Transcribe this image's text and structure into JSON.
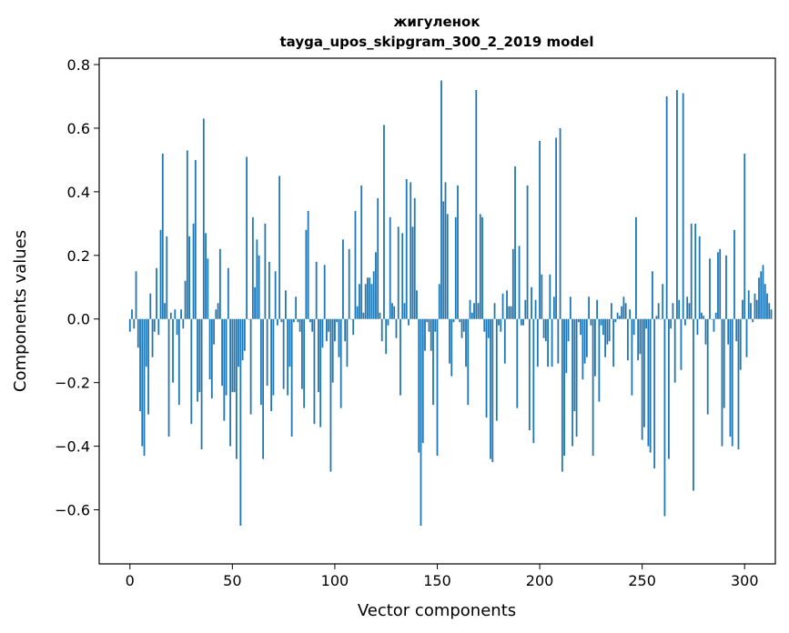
{
  "chart_data": {
    "type": "bar",
    "title": "жигуленок",
    "subtitle": "tayga_upos_skipgram_300_2_2019 model",
    "xlabel": "Vector components",
    "ylabel": "Components values",
    "xlim": [
      -15,
      315
    ],
    "ylim": [
      -0.77,
      0.82
    ],
    "xticks": [
      0,
      50,
      100,
      150,
      200,
      250,
      300
    ],
    "xtick_labels": [
      "0",
      "50",
      "100",
      "150",
      "200",
      "250",
      "300"
    ],
    "yticks": [
      -0.6,
      -0.4,
      -0.2,
      0.0,
      0.2,
      0.4,
      0.6,
      0.8
    ],
    "ytick_labels": [
      "−0.6",
      "−0.4",
      "−0.2",
      "0.0",
      "0.2",
      "0.4",
      "0.6",
      "0.8"
    ],
    "grid": false,
    "bar_color": "#1f77b4",
    "x_start": 0,
    "values": [
      -0.04,
      0.03,
      -0.03,
      0.15,
      -0.09,
      -0.29,
      -0.4,
      -0.43,
      -0.15,
      -0.3,
      0.08,
      -0.12,
      -0.04,
      0.16,
      -0.05,
      0.28,
      0.52,
      0.05,
      0.26,
      -0.37,
      0.02,
      -0.2,
      0.03,
      -0.05,
      -0.27,
      0.03,
      -0.03,
      0.12,
      0.53,
      0.26,
      -0.33,
      0.3,
      0.5,
      -0.26,
      -0.23,
      -0.41,
      0.63,
      0.27,
      0.19,
      -0.19,
      -0.25,
      -0.08,
      0.03,
      0.05,
      0.22,
      -0.21,
      -0.32,
      -0.24,
      0.16,
      -0.4,
      -0.23,
      -0.23,
      -0.44,
      -0.15,
      -0.65,
      -0.13,
      -0.1,
      0.51,
      0.0,
      -0.3,
      0.32,
      0.1,
      0.25,
      0.2,
      -0.27,
      -0.44,
      0.3,
      -0.21,
      0.18,
      -0.29,
      -0.24,
      0.15,
      -0.02,
      0.45,
      -0.01,
      -0.22,
      0.09,
      -0.24,
      -0.15,
      -0.37,
      -0.01,
      0.07,
      -0.01,
      -0.04,
      -0.22,
      -0.28,
      0.28,
      0.34,
      -0.01,
      -0.04,
      -0.33,
      0.18,
      -0.23,
      -0.34,
      -0.09,
      0.17,
      -0.07,
      -0.04,
      -0.48,
      -0.2,
      -0.07,
      -0.01,
      -0.12,
      -0.28,
      0.25,
      -0.07,
      -0.15,
      0.22,
      0.0,
      -0.05,
      0.34,
      0.04,
      0.11,
      0.42,
      0.02,
      0.11,
      0.13,
      0.13,
      0.11,
      0.15,
      0.21,
      0.38,
      0.02,
      -0.07,
      0.61,
      -0.11,
      -0.02,
      0.32,
      0.05,
      0.04,
      -0.06,
      0.29,
      -0.24,
      0.27,
      0.05,
      0.44,
      -0.02,
      0.43,
      0.29,
      0.38,
      0.09,
      -0.42,
      -0.65,
      -0.39,
      -0.1,
      -0.01,
      -0.04,
      -0.1,
      -0.27,
      -0.04,
      -0.43,
      0.11,
      0.75,
      0.37,
      0.43,
      0.33,
      -0.14,
      -0.18,
      -0.01,
      0.32,
      0.42,
      -0.01,
      -0.06,
      -0.04,
      -0.15,
      -0.27,
      0.06,
      0.02,
      0.05,
      0.72,
      0.05,
      0.33,
      0.32,
      -0.04,
      -0.31,
      -0.06,
      -0.44,
      -0.45,
      0.05,
      -0.32,
      -0.02,
      -0.04,
      0.08,
      -0.14,
      0.09,
      0.04,
      0.04,
      0.22,
      0.48,
      -0.28,
      0.23,
      -0.02,
      -0.02,
      0.06,
      0.42,
      -0.35,
      0.1,
      -0.39,
      0.06,
      -0.15,
      0.56,
      0.14,
      -0.06,
      -0.07,
      -0.15,
      0.14,
      -0.15,
      0.07,
      0.57,
      -0.14,
      0.6,
      -0.48,
      -0.43,
      -0.17,
      -0.07,
      0.07,
      -0.4,
      -0.29,
      -0.37,
      -0.01,
      -0.05,
      -0.19,
      -0.14,
      -0.12,
      0.07,
      -0.02,
      -0.43,
      -0.18,
      0.06,
      -0.26,
      -0.02,
      -0.05,
      -0.12,
      -0.08,
      -0.07,
      0.05,
      -0.15,
      -0.01,
      0.02,
      0.01,
      0.04,
      0.07,
      0.05,
      -0.13,
      0.03,
      -0.24,
      -0.05,
      0.32,
      -0.13,
      -0.11,
      -0.38,
      -0.34,
      -0.03,
      -0.4,
      -0.42,
      0.15,
      -0.47,
      0.01,
      0.05,
      0.0,
      0.11,
      -0.62,
      0.7,
      -0.44,
      -0.03,
      0.05,
      -0.2,
      0.72,
      0.06,
      -0.16,
      0.71,
      -0.02,
      0.07,
      0.05,
      0.3,
      -0.54,
      0.3,
      -0.05,
      0.26,
      0.02,
      0.01,
      -0.08,
      -0.3,
      0.19,
      0.0,
      -0.04,
      0.02,
      0.21,
      0.22,
      -0.4,
      -0.28,
      0.2,
      -0.08,
      -0.37,
      -0.4,
      0.28,
      -0.07,
      -0.41,
      -0.16,
      0.06,
      0.52,
      -0.12,
      0.09,
      0.05,
      -0.01,
      0.08,
      0.06,
      0.13,
      0.15,
      0.17,
      0.11,
      0.08,
      0.05,
      0.03
    ]
  }
}
